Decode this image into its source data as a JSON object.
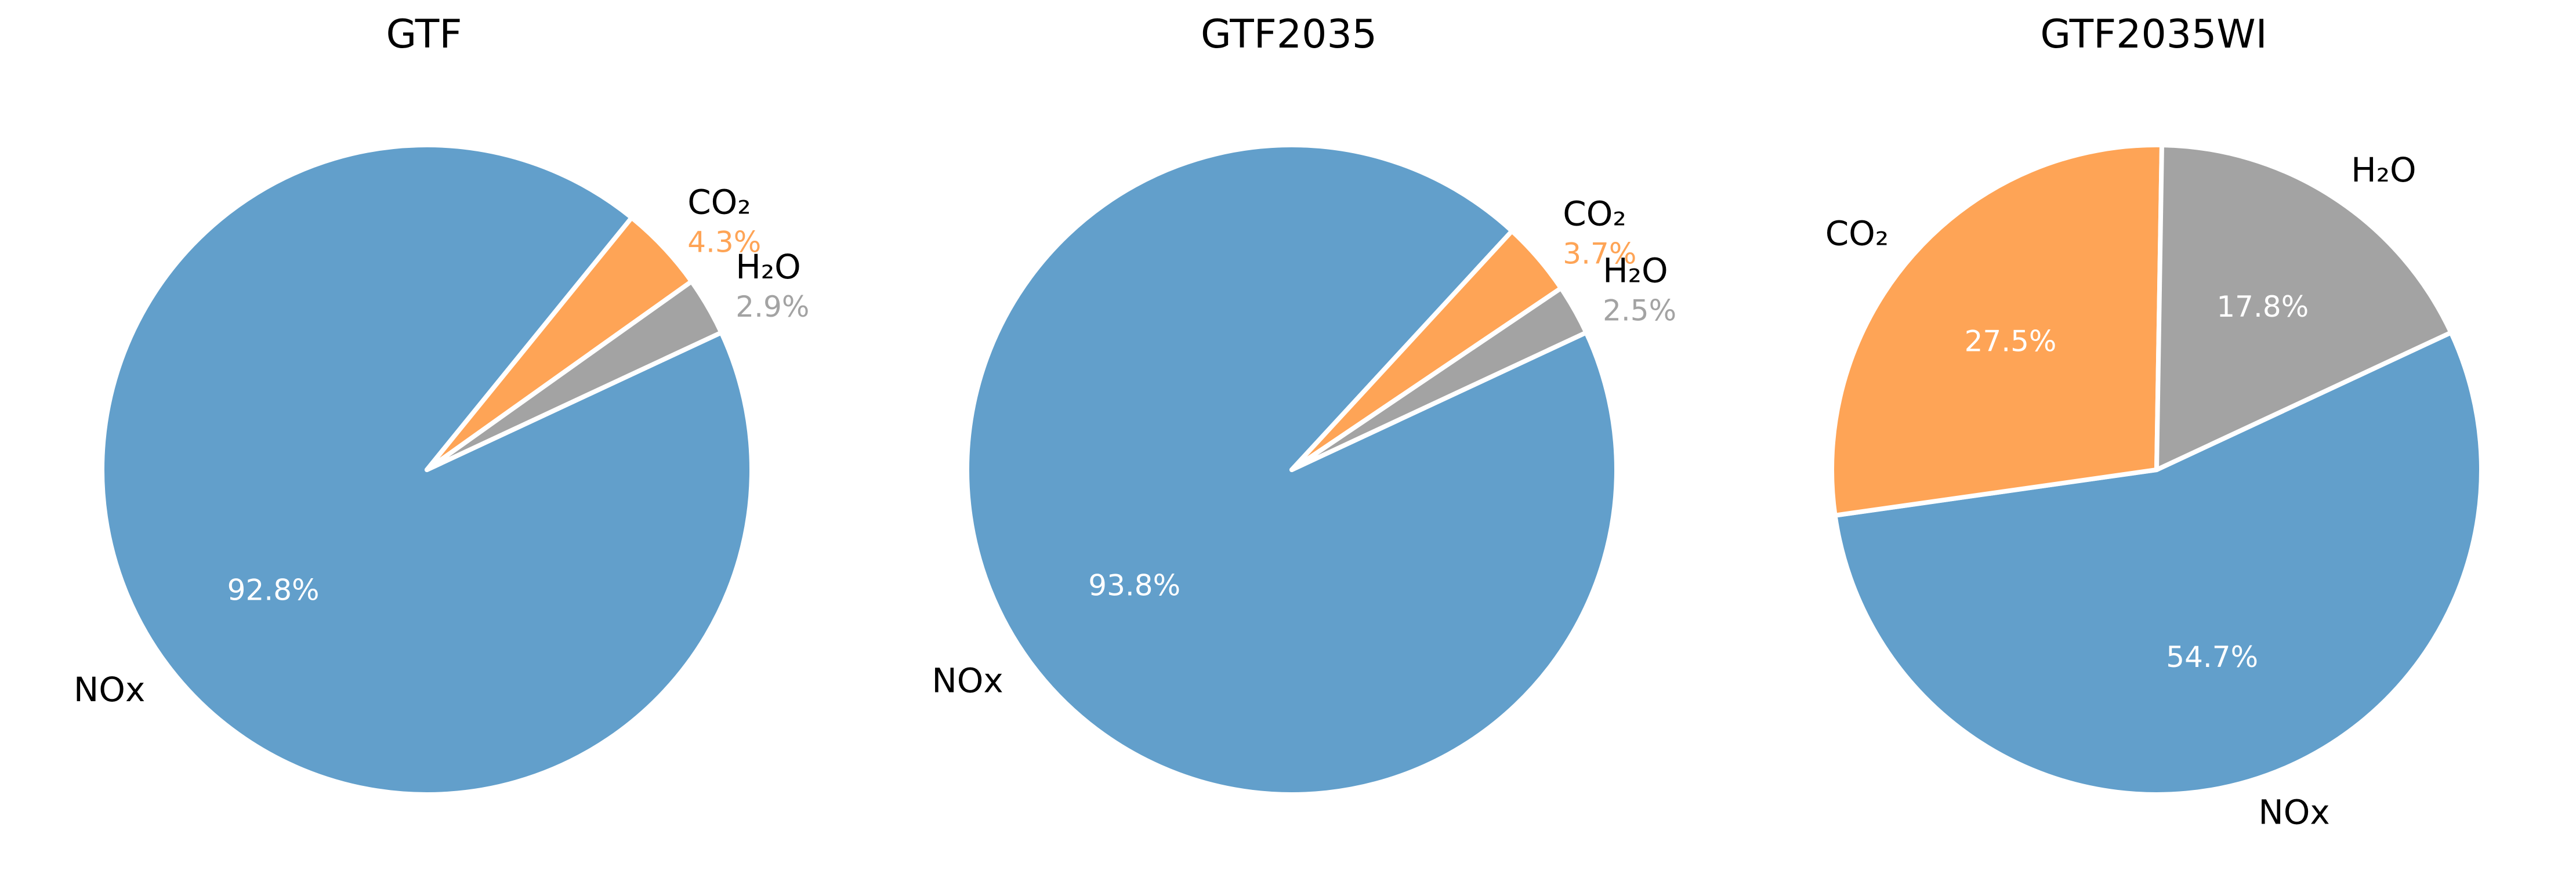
{
  "colors": {
    "NOx": "#629fcb",
    "CO2": "#fea456",
    "H2O": "#a3a3a3",
    "edge": "#ffffff",
    "inside_text": "#ffffff"
  },
  "chart_data": [
    {
      "type": "pie",
      "title": "GTF",
      "slices": [
        {
          "key": "NOx",
          "label": "NOx",
          "value": 92.8,
          "pct_label": "92.8%",
          "pct_inside": true
        },
        {
          "key": "CO2",
          "label": "CO₂",
          "value": 4.3,
          "pct_label": "4.3%",
          "pct_inside": false
        },
        {
          "key": "H2O",
          "label": "H₂O",
          "value": 2.9,
          "pct_label": "2.9%",
          "pct_inside": false
        }
      ],
      "start_angle_deg": -25,
      "direction": "clockwise"
    },
    {
      "type": "pie",
      "title": "GTF2035",
      "slices": [
        {
          "key": "NOx",
          "label": "NOx",
          "value": 93.8,
          "pct_label": "93.8%",
          "pct_inside": true
        },
        {
          "key": "CO2",
          "label": "CO₂",
          "value": 3.7,
          "pct_label": "3.7%",
          "pct_inside": false
        },
        {
          "key": "H2O",
          "label": "H₂O",
          "value": 2.5,
          "pct_label": "2.5%",
          "pct_inside": false
        }
      ],
      "start_angle_deg": -25,
      "direction": "clockwise"
    },
    {
      "type": "pie",
      "title": "GTF2035WI",
      "slices": [
        {
          "key": "NOx",
          "label": "NOx",
          "value": 54.7,
          "pct_label": "54.7%",
          "pct_inside": true
        },
        {
          "key": "CO2",
          "label": "CO₂",
          "value": 27.5,
          "pct_label": "27.5%",
          "pct_inside": true
        },
        {
          "key": "H2O",
          "label": "H₂O",
          "value": 17.8,
          "pct_label": "17.8%",
          "pct_inside": true
        }
      ],
      "start_angle_deg": -25,
      "direction": "clockwise"
    }
  ]
}
